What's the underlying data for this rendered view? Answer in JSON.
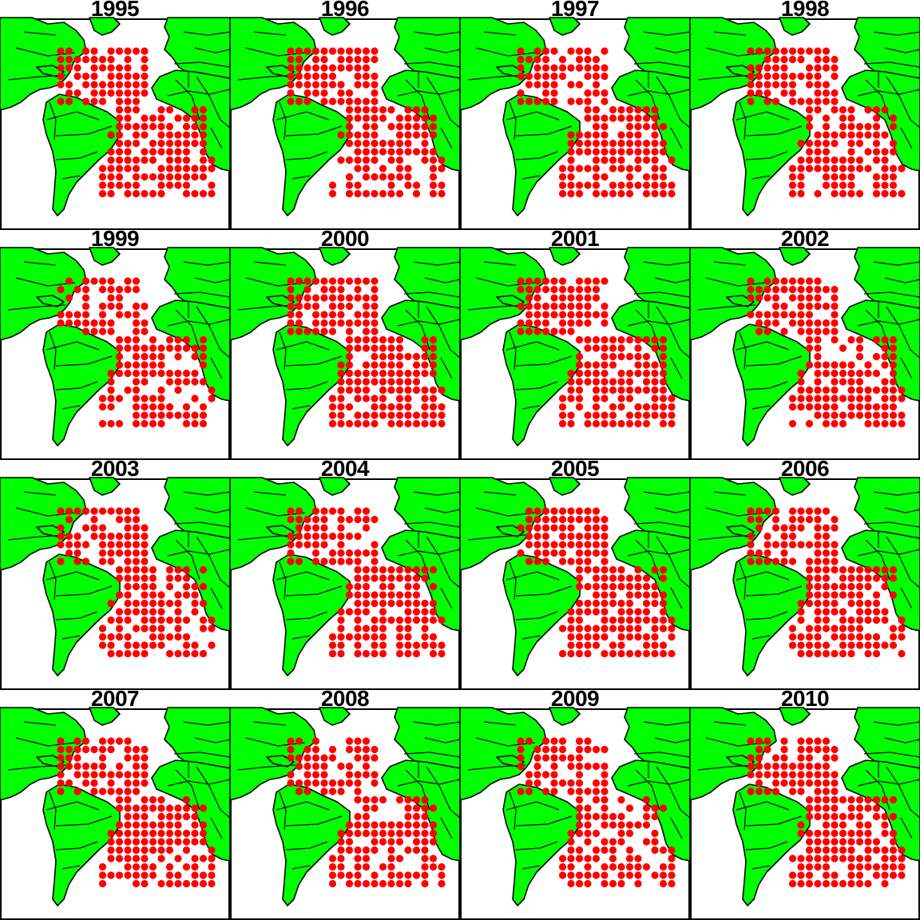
{
  "panels": [
    {
      "year": "1995"
    },
    {
      "year": "1996"
    },
    {
      "year": "1997"
    },
    {
      "year": "1998"
    },
    {
      "year": "1999"
    },
    {
      "year": "2000"
    },
    {
      "year": "2001"
    },
    {
      "year": "2002"
    },
    {
      "year": "2003"
    },
    {
      "year": "2004"
    },
    {
      "year": "2005"
    },
    {
      "year": "2006"
    },
    {
      "year": "2007"
    },
    {
      "year": "2008"
    },
    {
      "year": "2009"
    },
    {
      "year": "2010"
    }
  ],
  "colors": {
    "land": "#00ff00",
    "ocean": "#ffffff",
    "coastline": "#000000",
    "observation": "#ff0000"
  },
  "region": "Atlantic Ocean",
  "marker": "filled red circle per grid cell"
}
